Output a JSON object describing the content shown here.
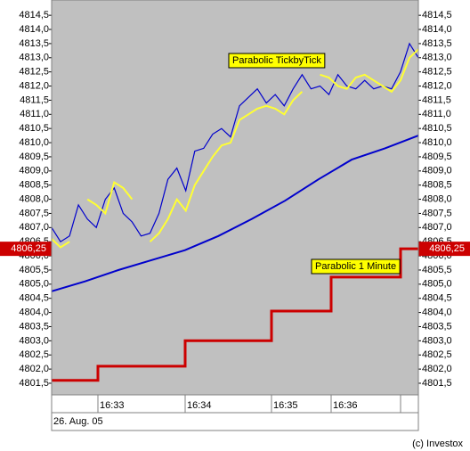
{
  "chart_data": {
    "type": "line",
    "ylim": [
      4801.09,
      4815.04
    ],
    "yticks": [
      {
        "value": 4801.5,
        "label": "4801,5"
      },
      {
        "value": 4802,
        "label": "4802,0"
      },
      {
        "value": 4802.5,
        "label": "4802,5"
      },
      {
        "value": 4803,
        "label": "4803,0"
      },
      {
        "value": 4803.5,
        "label": "4803,5"
      },
      {
        "value": 4804,
        "label": "4804,0"
      },
      {
        "value": 4804.5,
        "label": "4804,5"
      },
      {
        "value": 4805,
        "label": "4805,0"
      },
      {
        "value": 4805.5,
        "label": "4805,5"
      },
      {
        "value": 4806,
        "label": "4806,0"
      },
      {
        "value": 4806.5,
        "label": "4806,5"
      },
      {
        "value": 4807,
        "label": "4807,0"
      },
      {
        "value": 4807.5,
        "label": "4807,5"
      },
      {
        "value": 4808,
        "label": "4808,0"
      },
      {
        "value": 4808.5,
        "label": "4808,5"
      },
      {
        "value": 4809,
        "label": "4809,0"
      },
      {
        "value": 4809.5,
        "label": "4809,5"
      },
      {
        "value": 4810,
        "label": "4810,0"
      },
      {
        "value": 4810.5,
        "label": "4810,5"
      },
      {
        "value": 4811,
        "label": "4811,0"
      },
      {
        "value": 4811.5,
        "label": "4811,5"
      },
      {
        "value": 4812,
        "label": "4812,0"
      },
      {
        "value": 4812.5,
        "label": "4812,5"
      },
      {
        "value": 4813,
        "label": "4813,0"
      },
      {
        "value": 4813.5,
        "label": "4813,5"
      },
      {
        "value": 4814,
        "label": "4814,0"
      },
      {
        "value": 4814.5,
        "label": "4814,5"
      }
    ],
    "x_ticks": [
      "16:33",
      "16:34",
      "16:35",
      "16:36",
      null
    ],
    "date_label": "26. Aug. 05",
    "credit": "(c) Investox",
    "series": [
      {
        "color": "#0000cc",
        "values": [
          4807.0,
          4806.5,
          4806.7,
          4807.8,
          4807.3,
          4807.0,
          4808.0,
          4808.4,
          4807.5,
          4807.2,
          4806.7,
          4806.8,
          4807.5,
          4808.7,
          4809.1,
          4808.3,
          4809.7,
          4809.8,
          4810.3,
          4810.5,
          4810.2,
          4811.3,
          4811.6,
          4811.9,
          4811.4,
          4811.7,
          4811.3,
          4811.9,
          4812.4,
          4811.9,
          4812.0,
          4811.7,
          4812.4,
          4812.0,
          4811.9,
          4812.2,
          4811.9,
          4812.0,
          4811.9,
          4812.5,
          4813.5,
          4813.0
        ]
      },
      {
        "name": "Parabolic TickbyTick",
        "color": "#ffff33",
        "values": [
          4806.6,
          4806.3,
          4806.5,
          null,
          4808.0,
          4807.8,
          4807.5,
          4808.6,
          4808.4,
          4808.0,
          null,
          4806.5,
          4806.8,
          4807.3,
          4808.0,
          4807.6,
          4808.5,
          4809.0,
          4809.5,
          4809.9,
          4810.0,
          4810.8,
          4811.0,
          4811.2,
          4811.3,
          4811.2,
          4811.0,
          4811.5,
          4811.8,
          null,
          4812.4,
          4812.3,
          4812.0,
          4811.9,
          4812.3,
          4812.4,
          4812.2,
          4812.0,
          4811.8,
          4812.2,
          4813.0,
          4813.3
        ]
      },
      {
        "color": "#0000cc",
        "values": [
          4804.75,
          4805.1,
          4805.5,
          4805.85,
          4806.2,
          4806.7,
          4807.3,
          4807.95,
          4808.7,
          4809.4,
          4809.8,
          4810.25
        ]
      },
      {
        "name": "Parabolic 1 Minute",
        "color": "#cc0000",
        "values": [
          4801.6,
          4802.1,
          4803.0,
          4804.05,
          4805.25,
          4806.25
        ],
        "value_labels": [
          null,
          null,
          null,
          null,
          null,
          "4806,25"
        ]
      }
    ]
  }
}
